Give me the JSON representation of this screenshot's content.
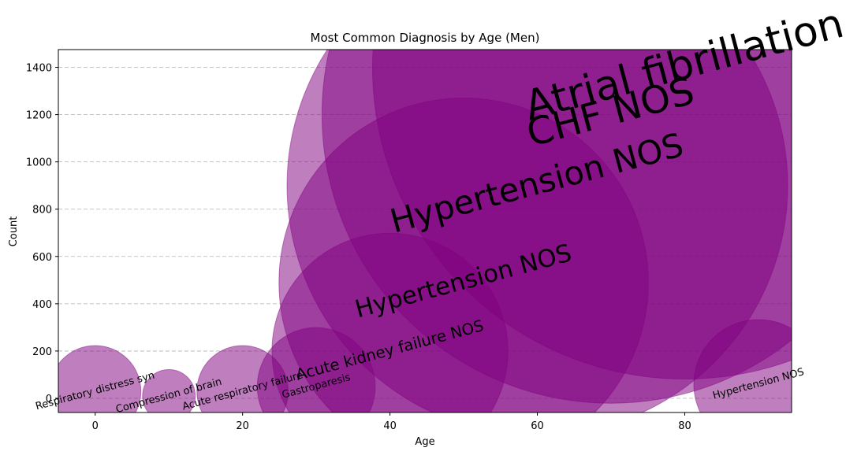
{
  "chart_data": {
    "type": "scatter",
    "title": "Most Common Diagnosis by Age (Men)",
    "xlabel": "Age",
    "ylabel": "Count",
    "xlim": [
      -5,
      94.5
    ],
    "ylim": [
      -60,
      1475
    ],
    "xticks": [
      0,
      20,
      40,
      60,
      80
    ],
    "yticks": [
      0,
      200,
      400,
      600,
      800,
      1000,
      1200,
      1400
    ],
    "grid": "y-dashed",
    "bubble_color": "#800080",
    "points": [
      {
        "age": 0,
        "count": 30,
        "label": "Respiratory distress syn"
      },
      {
        "age": 10,
        "count": 10,
        "label": "Compression of brain"
      },
      {
        "age": 20,
        "count": 30,
        "label": "Acute respiratory failure"
      },
      {
        "age": 30,
        "count": 50,
        "label": "Gastroparesis"
      },
      {
        "age": 40,
        "count": 200,
        "label": "Acute kidney failure NOS"
      },
      {
        "age": 50,
        "count": 490,
        "label": "Hypertension NOS"
      },
      {
        "age": 60,
        "count": 900,
        "label": "Hypertension NOS"
      },
      {
        "age": 70,
        "count": 1200,
        "label": "CHF NOS"
      },
      {
        "age": 80,
        "count": 1400,
        "label": "Atrial fibrillation"
      },
      {
        "age": 90,
        "count": 60,
        "label": "Hypertension NOS"
      }
    ]
  }
}
